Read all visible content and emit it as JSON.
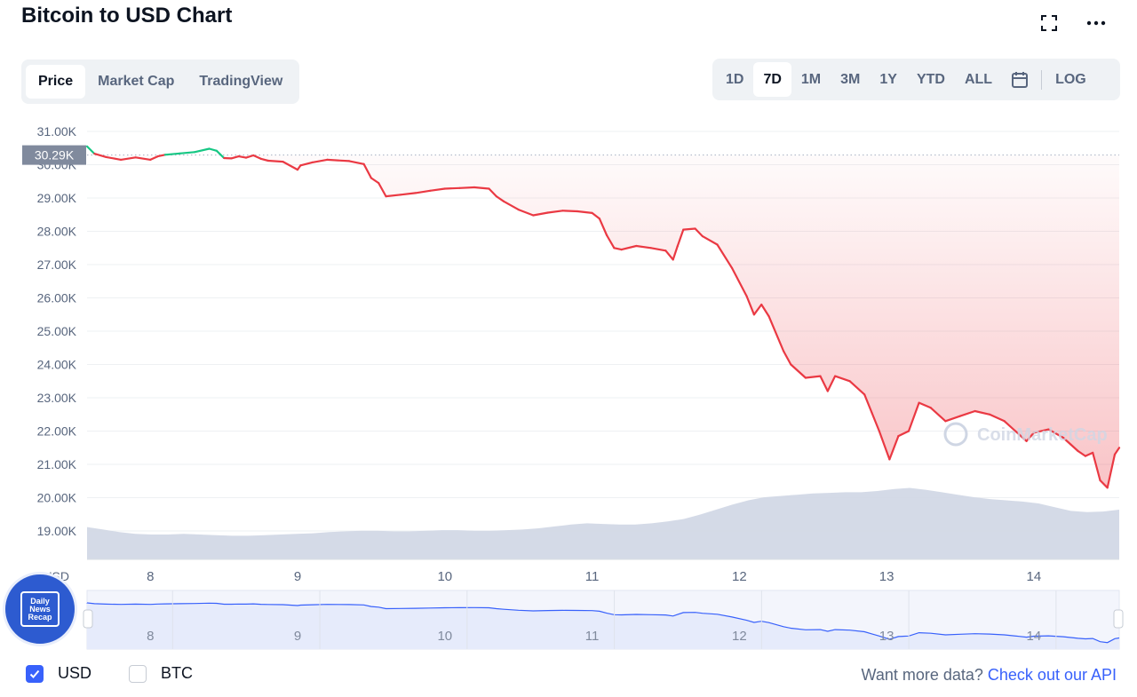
{
  "header": {
    "title": "Bitcoin to USD Chart",
    "fullscreen_icon": "fullscreen-icon",
    "more_icon": "more-horizontal-icon"
  },
  "tabs": [
    {
      "label": "Price",
      "active": true
    },
    {
      "label": "Market Cap",
      "active": false
    },
    {
      "label": "TradingView",
      "active": false
    }
  ],
  "ranges": [
    {
      "label": "1D",
      "active": false
    },
    {
      "label": "7D",
      "active": true
    },
    {
      "label": "1M",
      "active": false
    },
    {
      "label": "3M",
      "active": false
    },
    {
      "label": "1Y",
      "active": false
    },
    {
      "label": "YTD",
      "active": false
    },
    {
      "label": "ALL",
      "active": false
    }
  ],
  "calendar_icon": "calendar-icon",
  "log_label": "LOG",
  "colors": {
    "up": "#16c784",
    "down": "#ea3943",
    "volume": "#cfd6e4",
    "navigator_fill": "#e6ebfb",
    "navigator_line": "#3861fb",
    "accent": "#3861fb"
  },
  "chart_data": {
    "type": "line",
    "title": "",
    "ylim": [
      18500,
      31200
    ],
    "yticks": [
      "31.00K",
      "30.00K",
      "29.00K",
      "28.00K",
      "27.00K",
      "26.00K",
      "25.00K",
      "24.00K",
      "23.00K",
      "22.00K",
      "21.00K",
      "20.00K",
      "19.00K"
    ],
    "ytick_values": [
      31000,
      30000,
      29000,
      28000,
      27000,
      26000,
      25000,
      24000,
      23000,
      22000,
      21000,
      20000,
      19000
    ],
    "current_price_label": "30.29K",
    "current_price_value": 30290,
    "xlim": [
      7.57,
      14.58
    ],
    "xticks": [
      "8",
      "9",
      "10",
      "11",
      "12",
      "13",
      "14"
    ],
    "xtick_values": [
      8,
      9,
      10,
      11,
      12,
      13,
      14
    ],
    "x_axis_currency": "USD",
    "series": [
      {
        "values_x": [
          7.57,
          7.62,
          7.7,
          7.8,
          7.9,
          8.0,
          8.05,
          8.1,
          8.2,
          8.3,
          8.4,
          8.45,
          8.5,
          8.55,
          8.6,
          8.65,
          8.7,
          8.75,
          8.8,
          8.9,
          9.0,
          9.02,
          9.1,
          9.2,
          9.35,
          9.45,
          9.5,
          9.55,
          9.6,
          9.7,
          9.8,
          9.9,
          10.0,
          10.1,
          10.2,
          10.3,
          10.35,
          10.4,
          10.5,
          10.6,
          10.7,
          10.8,
          10.9,
          11.0,
          11.05,
          11.1,
          11.15,
          11.2,
          11.3,
          11.4,
          11.5,
          11.55,
          11.58,
          11.62,
          11.7,
          11.75,
          11.85,
          11.95,
          12.05,
          12.1,
          12.15,
          12.2,
          12.3,
          12.35,
          12.45,
          12.55,
          12.6,
          12.65,
          12.75,
          12.85,
          12.9,
          12.95,
          13.02,
          13.08,
          13.15,
          13.22,
          13.3,
          13.4,
          13.5,
          13.6,
          13.7,
          13.8,
          13.9,
          13.95,
          14.0,
          14.1,
          14.2,
          14.25,
          14.3,
          14.35,
          14.4,
          14.45,
          14.5,
          14.55,
          14.58
        ],
        "values_y": [
          30550,
          30330,
          30230,
          30150,
          30220,
          30150,
          30250,
          30300,
          30340,
          30380,
          30480,
          30420,
          30200,
          30190,
          30250,
          30210,
          30280,
          30180,
          30120,
          30090,
          29850,
          29980,
          30070,
          30150,
          30110,
          30020,
          29600,
          29450,
          29050,
          29100,
          29150,
          29220,
          29280,
          29300,
          29320,
          29280,
          29050,
          28900,
          28650,
          28480,
          28560,
          28620,
          28600,
          28550,
          28380,
          27880,
          27500,
          27450,
          27560,
          27500,
          27420,
          27150,
          27550,
          28050,
          28080,
          27850,
          27600,
          26900,
          26050,
          25500,
          25800,
          25450,
          24400,
          24000,
          23600,
          23650,
          23200,
          23650,
          23500,
          23100,
          22550,
          22000,
          21150,
          21850,
          22000,
          22850,
          22700,
          22300,
          22450,
          22600,
          22500,
          22300,
          21900,
          21700,
          21950,
          22050,
          21800,
          21600,
          21400,
          21250,
          21350,
          20520,
          20300,
          21300,
          21500
        ],
        "color_rule": "green above current price, red below"
      }
    ],
    "volume_relative": [
      0.52,
      0.48,
      0.44,
      0.41,
      0.4,
      0.4,
      0.41,
      0.4,
      0.39,
      0.38,
      0.38,
      0.39,
      0.4,
      0.41,
      0.42,
      0.44,
      0.45,
      0.46,
      0.46,
      0.45,
      0.45,
      0.46,
      0.47,
      0.47,
      0.46,
      0.46,
      0.47,
      0.48,
      0.5,
      0.53,
      0.56,
      0.58,
      0.57,
      0.56,
      0.56,
      0.58,
      0.61,
      0.65,
      0.72,
      0.8,
      0.88,
      0.95,
      1.0,
      1.02,
      1.04,
      1.06,
      1.07,
      1.08,
      1.08,
      1.1,
      1.13,
      1.15,
      1.12,
      1.08,
      1.04,
      1.0,
      0.97,
      0.95,
      0.93,
      0.9,
      0.84,
      0.78,
      0.76,
      0.77,
      0.8
    ],
    "navigator": {
      "xticks": [
        "8",
        "9",
        "10",
        "11",
        "12",
        "13",
        "14"
      ]
    },
    "watermark": "CoinMarketCap"
  },
  "legend": {
    "usd_label": "USD",
    "usd_checked": true,
    "btc_label": "BTC",
    "btc_checked": false
  },
  "api": {
    "prefix": "Want more data? ",
    "link": "Check out our API"
  },
  "badge": {
    "line1": "Daily",
    "line2": "News",
    "line3": "Recap"
  }
}
